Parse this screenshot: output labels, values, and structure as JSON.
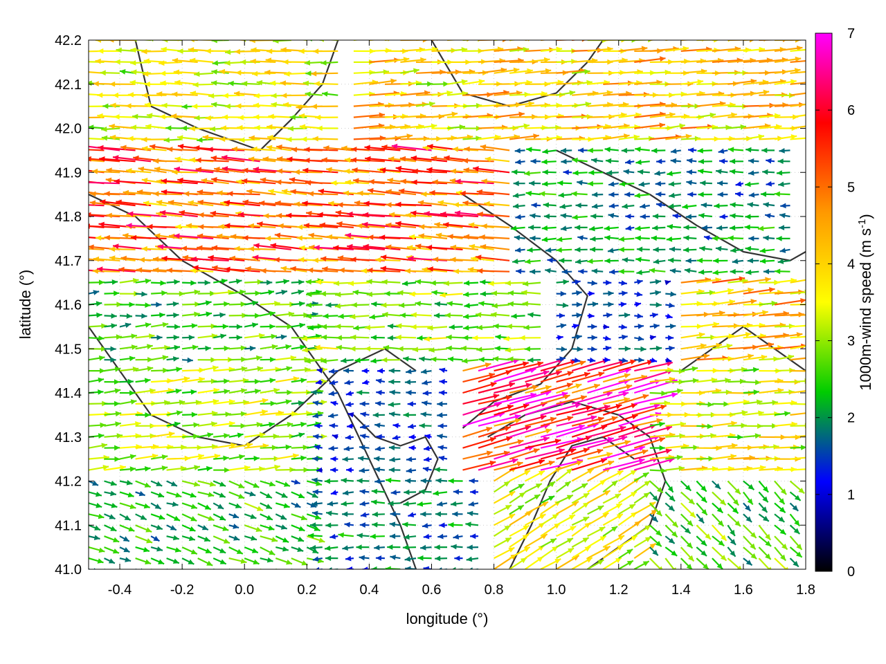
{
  "chart_data": {
    "type": "vector_field",
    "title": "",
    "xlabel": "longitude (°)",
    "ylabel": "latitude (°)",
    "xlim": [
      -0.5,
      1.8
    ],
    "ylim": [
      41.0,
      42.2
    ],
    "x_ticks": [
      "-0.4",
      "-0.2",
      "0.0",
      "0.2",
      "0.4",
      "0.6",
      "0.8",
      "1.0",
      "1.2",
      "1.4",
      "1.6",
      "1.8"
    ],
    "y_ticks": [
      "41.0",
      "41.1",
      "41.2",
      "41.3",
      "41.4",
      "41.5",
      "41.6",
      "41.7",
      "41.8",
      "41.9",
      "42.0",
      "42.1",
      "42.2"
    ],
    "grid": true,
    "colorbar": {
      "label_main": "1000m-wind speed (m s",
      "label_exp": "-1",
      "label_close": ")",
      "range": [
        0,
        7
      ],
      "ticks": [
        "0",
        "1",
        "2",
        "3",
        "4",
        "5",
        "6",
        "7"
      ],
      "colors": [
        "#000000",
        "#0000ff",
        "#00cc00",
        "#ffff00",
        "#ff9900",
        "#ff0000",
        "#ff00ff"
      ]
    },
    "wind_regions": [
      {
        "lon": [
          -0.5,
          0.3
        ],
        "lat": [
          41.95,
          42.2
        ],
        "u": -3.5,
        "v": 0.1,
        "speed": 3.5
      },
      {
        "lon": [
          0.3,
          1.8
        ],
        "lat": [
          41.95,
          42.2
        ],
        "u": 4.0,
        "v": 0.3,
        "speed": 4.2
      },
      {
        "lon": [
          -0.5,
          0.9
        ],
        "lat": [
          41.65,
          41.95
        ],
        "u": -5.0,
        "v": 0.4,
        "speed": 5.2
      },
      {
        "lon": [
          0.9,
          1.8
        ],
        "lat": [
          41.65,
          41.95
        ],
        "u": -2.0,
        "v": 0.0,
        "speed": 2.2
      },
      {
        "lon": [
          -0.5,
          0.2
        ],
        "lat": [
          41.45,
          41.65
        ],
        "u": 2.5,
        "v": 0.2,
        "speed": 2.8
      },
      {
        "lon": [
          0.2,
          1.0
        ],
        "lat": [
          41.45,
          41.65
        ],
        "u": -2.8,
        "v": 0.0,
        "speed": 3.0
      },
      {
        "lon": [
          1.0,
          1.4
        ],
        "lat": [
          41.45,
          41.65
        ],
        "u": 1.5,
        "v": 0.0,
        "speed": 1.5
      },
      {
        "lon": [
          1.4,
          1.8
        ],
        "lat": [
          41.45,
          41.65
        ],
        "u": 4.0,
        "v": 0.4,
        "speed": 4.5
      },
      {
        "lon": [
          -0.5,
          0.2
        ],
        "lat": [
          41.2,
          41.45
        ],
        "u": 3.0,
        "v": 0.3,
        "speed": 3.2
      },
      {
        "lon": [
          0.2,
          0.7
        ],
        "lat": [
          41.2,
          41.45
        ],
        "u": -1.5,
        "v": 0.0,
        "speed": 1.5
      },
      {
        "lon": [
          0.7,
          1.3
        ],
        "lat": [
          41.2,
          41.45
        ],
        "u": 5.5,
        "v": 1.5,
        "speed": 6.3
      },
      {
        "lon": [
          1.3,
          1.8
        ],
        "lat": [
          41.2,
          41.45
        ],
        "u": 3.5,
        "v": 0.2,
        "speed": 3.8
      },
      {
        "lon": [
          -0.5,
          0.2
        ],
        "lat": [
          41.0,
          41.2
        ],
        "u": 2.2,
        "v": -0.8,
        "speed": 2.6
      },
      {
        "lon": [
          0.2,
          0.8
        ],
        "lat": [
          41.0,
          41.2
        ],
        "u": -1.8,
        "v": 0.0,
        "speed": 1.8
      },
      {
        "lon": [
          0.8,
          1.3
        ],
        "lat": [
          41.0,
          41.2
        ],
        "u": 3.0,
        "v": 1.8,
        "speed": 3.5
      },
      {
        "lon": [
          1.3,
          1.8
        ],
        "lat": [
          41.0,
          41.2
        ],
        "u": 1.8,
        "v": -1.8,
        "speed": 3.0
      }
    ],
    "contours": [
      [
        [
          -0.5,
          41.85
        ],
        [
          -0.35,
          41.8
        ],
        [
          -0.2,
          41.7
        ],
        [
          0.0,
          41.62
        ],
        [
          0.15,
          41.55
        ],
        [
          0.3,
          41.4
        ],
        [
          0.4,
          41.25
        ],
        [
          0.5,
          41.1
        ],
        [
          0.55,
          41.0
        ]
      ],
      [
        [
          -0.5,
          41.55
        ],
        [
          -0.4,
          41.45
        ],
        [
          -0.3,
          41.35
        ],
        [
          -0.15,
          41.3
        ],
        [
          0.0,
          41.28
        ],
        [
          0.15,
          41.35
        ],
        [
          0.3,
          41.45
        ],
        [
          0.45,
          41.5
        ],
        [
          0.55,
          41.45
        ]
      ],
      [
        [
          -0.35,
          42.2
        ],
        [
          -0.3,
          42.05
        ],
        [
          -0.15,
          42.0
        ],
        [
          0.05,
          41.95
        ],
        [
          0.15,
          42.02
        ],
        [
          0.25,
          42.1
        ],
        [
          0.3,
          42.2
        ]
      ],
      [
        [
          0.6,
          42.2
        ],
        [
          0.7,
          42.08
        ],
        [
          0.85,
          42.05
        ],
        [
          1.0,
          42.08
        ],
        [
          1.1,
          42.15
        ],
        [
          1.15,
          42.2
        ]
      ],
      [
        [
          0.7,
          41.85
        ],
        [
          0.85,
          41.78
        ],
        [
          1.0,
          41.7
        ],
        [
          1.1,
          41.62
        ],
        [
          1.05,
          41.5
        ],
        [
          0.95,
          41.42
        ],
        [
          0.8,
          41.38
        ],
        [
          0.7,
          41.32
        ]
      ],
      [
        [
          1.0,
          41.95
        ],
        [
          1.15,
          41.9
        ],
        [
          1.3,
          41.85
        ],
        [
          1.45,
          41.78
        ],
        [
          1.6,
          41.72
        ],
        [
          1.75,
          41.7
        ],
        [
          1.8,
          41.72
        ]
      ],
      [
        [
          0.78,
          41.3
        ],
        [
          0.9,
          41.35
        ],
        [
          1.05,
          41.38
        ],
        [
          1.2,
          41.35
        ],
        [
          1.3,
          41.3
        ],
        [
          1.35,
          41.2
        ],
        [
          1.3,
          41.1
        ],
        [
          1.2,
          41.05
        ],
        [
          1.1,
          41.0
        ]
      ],
      [
        [
          0.85,
          41.0
        ],
        [
          0.92,
          41.1
        ],
        [
          0.98,
          41.2
        ],
        [
          1.05,
          41.28
        ],
        [
          1.15,
          41.3
        ],
        [
          1.25,
          41.25
        ]
      ],
      [
        [
          1.4,
          41.45
        ],
        [
          1.5,
          41.5
        ],
        [
          1.6,
          41.55
        ],
        [
          1.7,
          41.5
        ],
        [
          1.8,
          41.45
        ]
      ],
      [
        [
          0.35,
          41.35
        ],
        [
          0.42,
          41.3
        ],
        [
          0.5,
          41.28
        ],
        [
          0.58,
          41.3
        ],
        [
          0.62,
          41.25
        ],
        [
          0.58,
          41.18
        ],
        [
          0.5,
          41.15
        ]
      ]
    ]
  }
}
